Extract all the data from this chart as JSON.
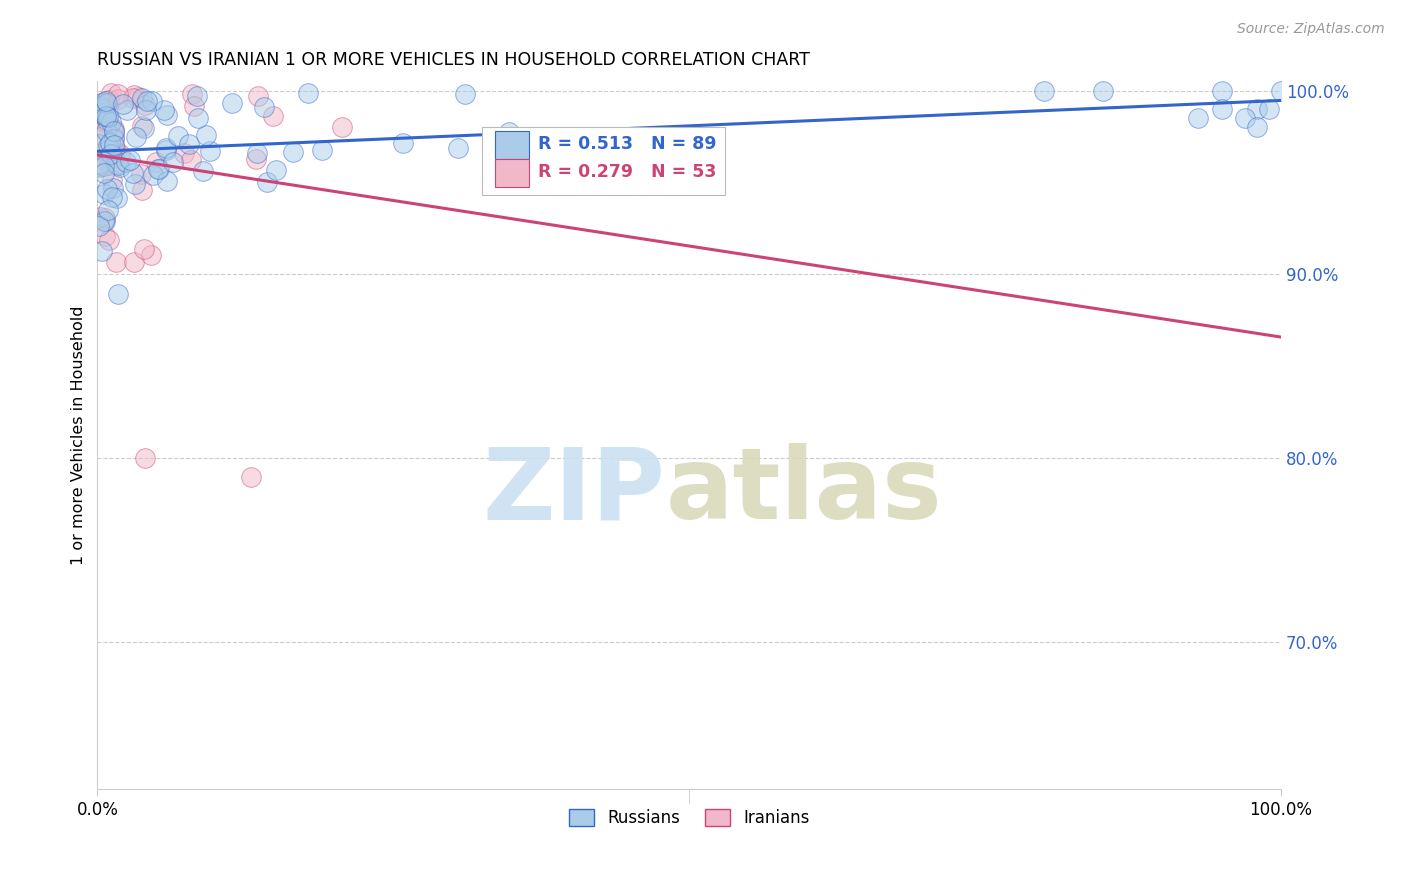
{
  "title": "RUSSIAN VS IRANIAN 1 OR MORE VEHICLES IN HOUSEHOLD CORRELATION CHART",
  "source": "Source: ZipAtlas.com",
  "ylabel": "1 or more Vehicles in Household",
  "russian_r": 0.513,
  "russian_n": 89,
  "iranian_r": 0.279,
  "iranian_n": 53,
  "russian_color": "#aacce8",
  "iranian_color": "#f0b8c8",
  "russian_line_color": "#3366cc",
  "iranian_line_color": "#cc4477",
  "legend_russian": "Russians",
  "legend_iranian": "Iranians",
  "xlim": [
    0.0,
    1.0
  ],
  "ylim": [
    0.62,
    1.005
  ],
  "ytick_values": [
    0.7,
    0.8,
    0.9,
    1.0
  ],
  "ytick_labels": [
    "70.0%",
    "80.0%",
    "90.0%",
    "100.0%"
  ],
  "watermark_zip_color": "#c8dff0",
  "watermark_atlas_color": "#c8dff0",
  "grid_color": "#cccccc",
  "title_fontsize": 12.5,
  "source_color": "#999999"
}
